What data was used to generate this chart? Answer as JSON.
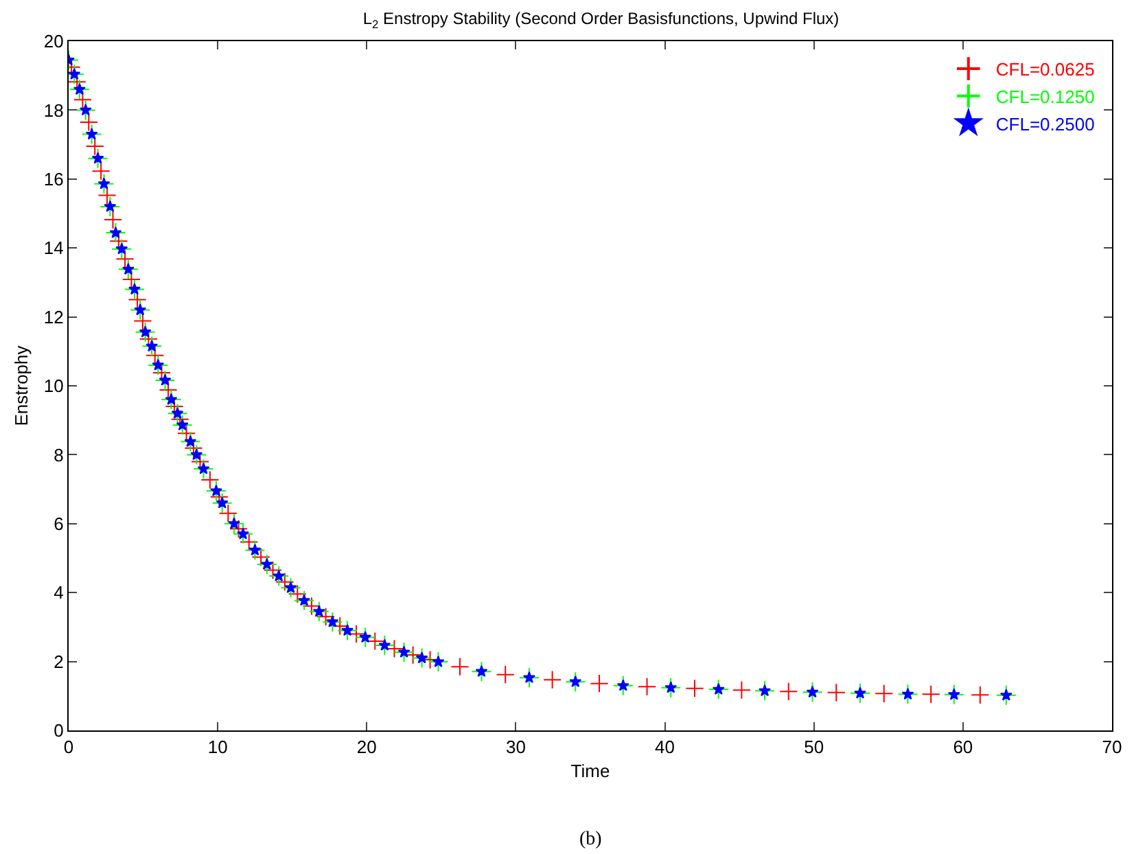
{
  "chart_data": {
    "type": "scatter",
    "title": "L$_{2}$ Enstropy Stability (Second Order Basisfunctions, Upwind Flux)",
    "xlabel": "Time",
    "ylabel": "Enstrophy",
    "annotations": [
      "(b)"
    ],
    "xlim": [
      0,
      70
    ],
    "xticks": [
      0,
      10,
      20,
      30,
      40,
      50,
      60,
      70
    ],
    "ylim": [
      0,
      20
    ],
    "yticks": [
      0,
      2,
      4,
      6,
      8,
      10,
      12,
      14,
      16,
      18,
      20
    ],
    "grid": false,
    "legend": "top right",
    "series": [
      {
        "name": "CFL=0.0625",
        "color": "#ff0000",
        "marker": "cross",
        "x": [
          0.19,
          0.56,
          0.94,
          1.35,
          1.76,
          2.17,
          2.58,
          2.97,
          3.36,
          3.78,
          4.21,
          4.61,
          4.97,
          5.36,
          5.79,
          6.24,
          6.68,
          7.09,
          7.47,
          7.9,
          8.38,
          8.82,
          9.48,
          10.1,
          10.7,
          11.4,
          12.1,
          12.9,
          13.7,
          14.5,
          15.35,
          16.3,
          17.25,
          18.2,
          19.3,
          20.55,
          21.85,
          23.1,
          24.25,
          26.25,
          29.3,
          32.45,
          35.6,
          38.8,
          42.0,
          45.15,
          48.3,
          51.5,
          54.7,
          57.85,
          61.15
        ],
        "values": [
          19.25,
          18.82,
          18.3,
          17.65,
          16.95,
          16.23,
          15.53,
          14.82,
          14.2,
          13.68,
          13.09,
          12.5,
          11.88,
          11.36,
          10.88,
          10.38,
          9.88,
          9.4,
          9.03,
          8.62,
          8.19,
          7.8,
          7.27,
          6.78,
          6.3,
          5.85,
          5.47,
          5.03,
          4.65,
          4.31,
          3.96,
          3.61,
          3.3,
          3.03,
          2.8,
          2.59,
          2.37,
          2.19,
          2.05,
          1.85,
          1.62,
          1.47,
          1.36,
          1.27,
          1.22,
          1.17,
          1.13,
          1.1,
          1.07,
          1.05,
          1.03
        ]
      },
      {
        "name": "CFL=0.1250",
        "color": "#00ff00",
        "marker": "cross",
        "x": [
          0,
          0.38,
          0.73,
          1.14,
          1.55,
          1.96,
          2.37,
          2.78,
          3.15,
          3.56,
          4.0,
          4.42,
          4.8,
          5.14,
          5.58,
          6.0,
          6.47,
          6.88,
          7.3,
          7.63,
          8.17,
          8.58,
          9.05,
          9.9,
          10.3,
          11.1,
          11.7,
          12.5,
          13.3,
          14.1,
          14.9,
          15.8,
          16.8,
          17.7,
          18.7,
          19.9,
          21.2,
          22.5,
          23.7,
          24.8,
          27.7,
          30.9,
          34.0,
          37.2,
          40.4,
          43.6,
          46.7,
          49.9,
          53.1,
          56.3,
          59.4,
          62.9
        ],
        "values": [
          19.45,
          19.04,
          18.6,
          18.0,
          17.3,
          16.6,
          15.86,
          15.2,
          14.44,
          13.97,
          13.38,
          12.8,
          12.2,
          11.56,
          11.15,
          10.6,
          10.16,
          9.6,
          9.2,
          8.86,
          8.38,
          8.0,
          7.59,
          6.95,
          6.6,
          6.0,
          5.7,
          5.23,
          4.82,
          4.48,
          4.14,
          3.77,
          3.45,
          3.15,
          2.9,
          2.7,
          2.47,
          2.27,
          2.1,
          1.99,
          1.71,
          1.53,
          1.41,
          1.3,
          1.24,
          1.19,
          1.15,
          1.11,
          1.08,
          1.05,
          1.04,
          1.02
        ]
      },
      {
        "name": "CFL=0.2500",
        "color": "#0000ff",
        "marker": "star",
        "x": [
          0,
          0.38,
          0.73,
          1.14,
          1.55,
          1.96,
          2.37,
          2.78,
          3.15,
          3.56,
          4.0,
          4.42,
          4.8,
          5.14,
          5.58,
          6.0,
          6.47,
          6.88,
          7.3,
          7.63,
          8.17,
          8.58,
          9.05,
          9.9,
          10.3,
          11.1,
          11.7,
          12.5,
          13.3,
          14.1,
          14.9,
          15.8,
          16.8,
          17.7,
          18.7,
          19.9,
          21.2,
          22.5,
          23.7,
          24.8,
          27.7,
          30.9,
          34.0,
          37.2,
          40.4,
          43.6,
          46.7,
          49.9,
          53.1,
          56.3,
          59.4,
          62.9
        ],
        "values": [
          19.45,
          19.04,
          18.6,
          18.0,
          17.3,
          16.6,
          15.86,
          15.2,
          14.44,
          13.97,
          13.38,
          12.8,
          12.2,
          11.56,
          11.15,
          10.6,
          10.16,
          9.6,
          9.2,
          8.86,
          8.38,
          8.0,
          7.59,
          6.95,
          6.6,
          6.0,
          5.7,
          5.23,
          4.82,
          4.48,
          4.14,
          3.77,
          3.45,
          3.15,
          2.9,
          2.7,
          2.47,
          2.27,
          2.1,
          1.99,
          1.71,
          1.53,
          1.41,
          1.3,
          1.24,
          1.19,
          1.15,
          1.11,
          1.08,
          1.05,
          1.04,
          1.02
        ]
      }
    ]
  }
}
